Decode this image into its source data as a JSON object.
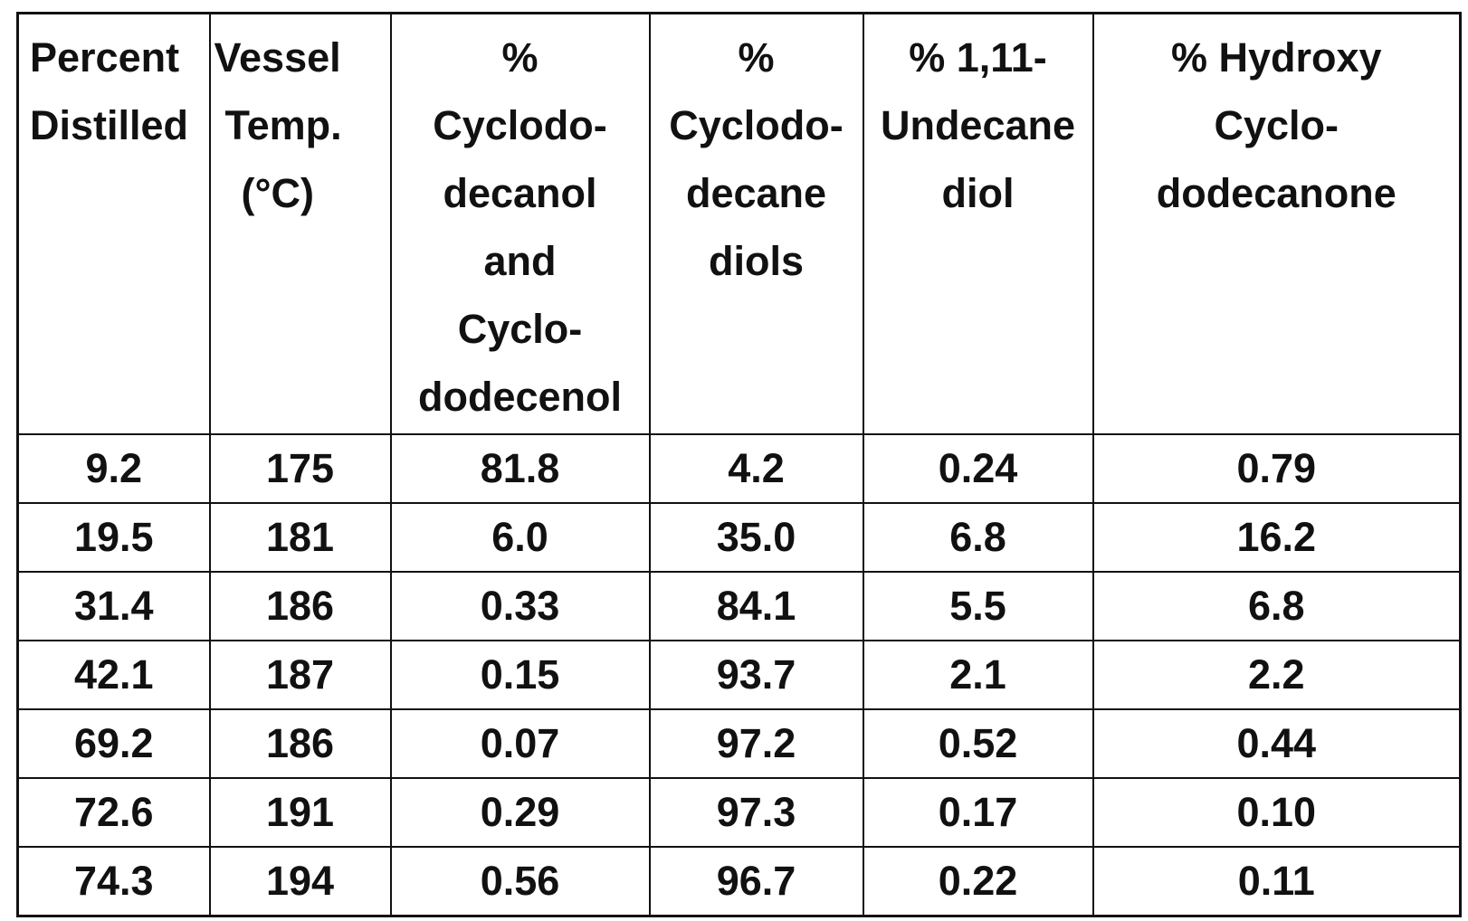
{
  "table": {
    "columns": [
      {
        "lines": [
          "Percent",
          "Distilled"
        ]
      },
      {
        "lines": [
          "Vessel",
          "Temp.",
          "(°C)"
        ]
      },
      {
        "lines": [
          "%",
          "Cyclodo-",
          "decanol",
          "and",
          "Cyclo-",
          "dodecenol"
        ]
      },
      {
        "lines": [
          "%",
          "Cyclodo-",
          "decane",
          "diols"
        ]
      },
      {
        "lines": [
          "% 1,11-",
          "Undecane",
          "diol"
        ]
      },
      {
        "lines": [
          "% Hydroxy",
          "Cyclo-",
          "dodecanone"
        ]
      }
    ],
    "rows": [
      [
        "9.2",
        "175",
        "81.8",
        "4.2",
        "0.24",
        "0.79"
      ],
      [
        "19.5",
        "181",
        "6.0",
        "35.0",
        "6.8",
        "16.2"
      ],
      [
        "31.4",
        "186",
        "0.33",
        "84.1",
        "5.5",
        "6.8"
      ],
      [
        "42.1",
        "187",
        "0.15",
        "93.7",
        "2.1",
        "2.2"
      ],
      [
        "69.2",
        "186",
        "0.07",
        "97.2",
        "0.52",
        "0.44"
      ],
      [
        "72.6",
        "191",
        "0.29",
        "97.3",
        "0.17",
        "0.10"
      ],
      [
        "74.3",
        "194",
        "0.56",
        "96.7",
        "0.22",
        "0.11"
      ]
    ]
  }
}
